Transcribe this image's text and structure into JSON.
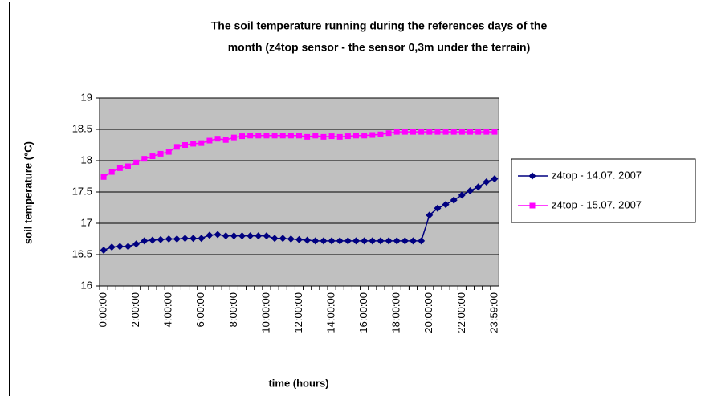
{
  "chart_data": {
    "type": "line",
    "title": [
      "The soil temperature running during the references days  of the",
      "month (z4top sensor - the sensor 0,3m under the terrain)"
    ],
    "x_label": "time (hours)",
    "y_label": "soil temperature (°C)",
    "categories": [
      "0:00:00",
      null,
      null,
      null,
      "2:00:00",
      null,
      null,
      null,
      "4:00:00",
      null,
      null,
      null,
      "6:00:00",
      null,
      null,
      null,
      "8:00:00",
      null,
      null,
      null,
      "10:00:00",
      null,
      null,
      null,
      "12:00:00",
      null,
      null,
      null,
      "14:00:00",
      null,
      null,
      null,
      "16:00:00",
      null,
      null,
      null,
      "18:00:00",
      null,
      null,
      null,
      "20:00:00",
      null,
      null,
      null,
      "22:00:00",
      null,
      null,
      null,
      "23:59:00"
    ],
    "series": [
      {
        "name": "z4top - 14.07. 2007",
        "color": "#000080",
        "marker": "diamond",
        "values": [
          16.57,
          16.62,
          16.63,
          16.63,
          16.67,
          16.72,
          16.73,
          16.74,
          16.75,
          16.75,
          16.76,
          16.76,
          16.76,
          16.81,
          16.82,
          16.8,
          16.8,
          16.8,
          16.8,
          16.8,
          16.8,
          16.76,
          16.76,
          16.75,
          16.74,
          16.73,
          16.72,
          16.72,
          16.72,
          16.72,
          16.72,
          16.72,
          16.72,
          16.72,
          16.72,
          16.72,
          16.72,
          16.72,
          16.72,
          16.72,
          17.13,
          17.24,
          17.3,
          17.37,
          17.45,
          17.52,
          17.58,
          17.66,
          17.71
        ]
      },
      {
        "name": "z4top - 15.07. 2007",
        "color": "#ff00ff",
        "marker": "square",
        "values": [
          17.74,
          17.82,
          17.88,
          17.91,
          17.97,
          18.03,
          18.07,
          18.11,
          18.14,
          18.22,
          18.25,
          18.27,
          18.28,
          18.32,
          18.35,
          18.33,
          18.37,
          18.39,
          18.4,
          18.4,
          18.4,
          18.4,
          18.4,
          18.4,
          18.4,
          18.38,
          18.4,
          18.38,
          18.39,
          18.38,
          18.39,
          18.4,
          18.4,
          18.41,
          18.42,
          18.44,
          18.46,
          18.46,
          18.46,
          18.46,
          18.46,
          18.46,
          18.46,
          18.46,
          18.46,
          18.46,
          18.46,
          18.46,
          18.46
        ]
      }
    ],
    "ylim": [
      16,
      19
    ],
    "yticks": [
      16,
      16.5,
      17,
      17.5,
      18,
      18.5,
      19
    ],
    "grid": true,
    "plot_background": "#c0c0c0",
    "legend": "right"
  }
}
